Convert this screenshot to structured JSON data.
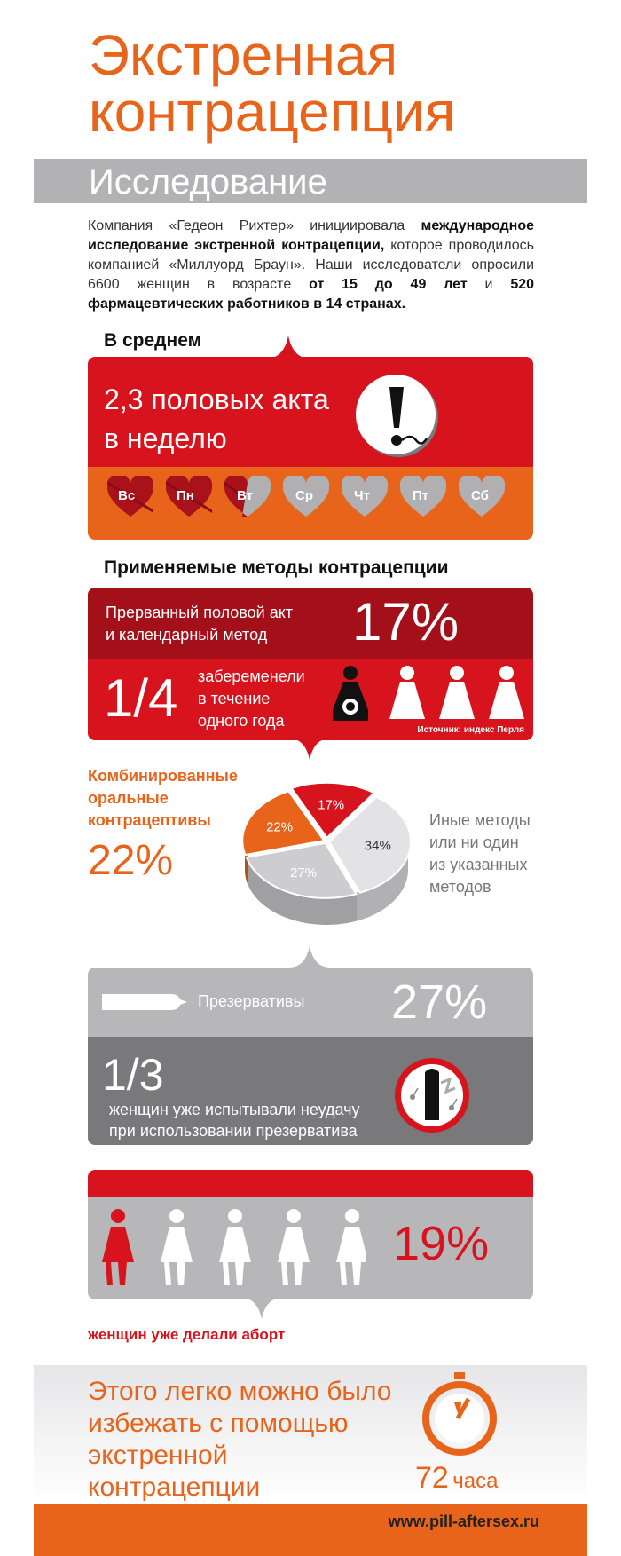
{
  "header": {
    "title_line1": "Экстренная",
    "title_line2": "контрацепция",
    "section": "Исследование"
  },
  "intro": {
    "p1": "Компания «Гедеон Рихтер» инициировала ",
    "b1": "международное исследование экстренной контрацепции,",
    "p2": " которое проводилось компанией «Миллуорд Браун». Наши исследователи опросили 6600 женщин в возрасте ",
    "b2": "от 15 до 49 лет",
    "p3": " и ",
    "b3": "520 фармацевтических работников в 14 странах."
  },
  "average": {
    "heading": "В среднем",
    "line1": "2,3 половых акта",
    "line2": "в неделю",
    "days": [
      "Вс",
      "Пн",
      "Вт",
      "Ср",
      "Чт",
      "Пт",
      "Сб"
    ]
  },
  "methods": {
    "heading": "Применяемые методы контрацепции",
    "withdrawal_line1": "Прерванный половой акт",
    "withdrawal_line2": "и календарный метод",
    "withdrawal_pct": "17%",
    "fraction": "1/4",
    "pregnant_line1": "забеременели",
    "pregnant_line2": "в течение",
    "pregnant_line3": "одного года",
    "source": "Источник: индекс Перля"
  },
  "pie": {
    "left_line1": "Комбинированные",
    "left_line2": "оральные",
    "left_line3": "контрацептивы",
    "left_pct": "22%",
    "right_line1": "Иные методы",
    "right_line2": "или ни один",
    "right_line3": "из указанных",
    "right_line4": "методов"
  },
  "chart_data": {
    "type": "pie",
    "categories": [
      "17%",
      "34%",
      "27%",
      "22%"
    ],
    "values": [
      17,
      34,
      27,
      22
    ],
    "colors": [
      "#d7141d",
      "#e3e3e5",
      "#cdcdd0",
      "#e8641b"
    ]
  },
  "condoms": {
    "label": "Презервативы",
    "pct": "27%",
    "fraction": "1/3",
    "line1": "женщин уже испытывали неудачу",
    "line2": "при использовании презерватива"
  },
  "abortion": {
    "pct": "19%",
    "caption": "женщин уже делали аборт"
  },
  "footer": {
    "line1": "Этого легко можно было",
    "line2": "избежать с помощью",
    "line3": "экстренной",
    "line4": "контрацепции",
    "hours_num": "72",
    "hours_unit": "часа",
    "url": "www.pill-aftersex.ru"
  }
}
